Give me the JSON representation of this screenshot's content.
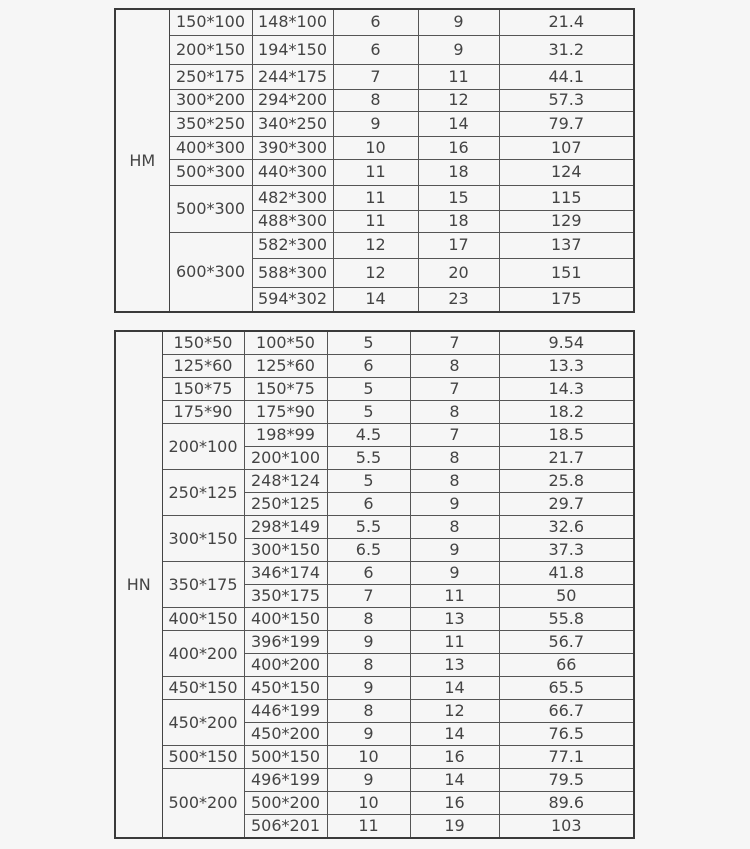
{
  "tables": [
    {
      "series": "HM",
      "groups": [
        {
          "nominal": "150*100",
          "rows": [
            [
              "148*100",
              "6",
              "9",
              "21.4"
            ]
          ]
        },
        {
          "nominal": "200*150",
          "rows": [
            [
              "194*150",
              "6",
              "9",
              "31.2"
            ]
          ]
        },
        {
          "nominal": "250*175",
          "rows": [
            [
              "244*175",
              "7",
              "11",
              "44.1"
            ]
          ]
        },
        {
          "nominal": "300*200",
          "rows": [
            [
              "294*200",
              "8",
              "12",
              "57.3"
            ]
          ]
        },
        {
          "nominal": "350*250",
          "rows": [
            [
              "340*250",
              "9",
              "14",
              "79.7"
            ]
          ]
        },
        {
          "nominal": "400*300",
          "rows": [
            [
              "390*300",
              "10",
              "16",
              "107"
            ]
          ]
        },
        {
          "nominal": "500*300",
          "rows": [
            [
              "440*300",
              "11",
              "18",
              "124"
            ]
          ]
        },
        {
          "nominal": "500*300",
          "rows": [
            [
              "482*300",
              "11",
              "15",
              "115"
            ],
            [
              "488*300",
              "11",
              "18",
              "129"
            ]
          ]
        },
        {
          "nominal": "600*300",
          "rows": [
            [
              "582*300",
              "12",
              "17",
              "137"
            ],
            [
              "588*300",
              "12",
              "20",
              "151"
            ],
            [
              "594*302",
              "14",
              "23",
              "175"
            ]
          ]
        }
      ]
    },
    {
      "series": "HN",
      "groups": [
        {
          "nominal": "150*50",
          "rows": [
            [
              "100*50",
              "5",
              "7",
              "9.54"
            ]
          ]
        },
        {
          "nominal": "125*60",
          "rows": [
            [
              "125*60",
              "6",
              "8",
              "13.3"
            ]
          ]
        },
        {
          "nominal": "150*75",
          "rows": [
            [
              "150*75",
              "5",
              "7",
              "14.3"
            ]
          ]
        },
        {
          "nominal": "175*90",
          "rows": [
            [
              "175*90",
              "5",
              "8",
              "18.2"
            ]
          ]
        },
        {
          "nominal": "200*100",
          "rows": [
            [
              "198*99",
              "4.5",
              "7",
              "18.5"
            ],
            [
              "200*100",
              "5.5",
              "8",
              "21.7"
            ]
          ]
        },
        {
          "nominal": "250*125",
          "rows": [
            [
              "248*124",
              "5",
              "8",
              "25.8"
            ],
            [
              "250*125",
              "6",
              "9",
              "29.7"
            ]
          ]
        },
        {
          "nominal": "300*150",
          "rows": [
            [
              "298*149",
              "5.5",
              "8",
              "32.6"
            ],
            [
              "300*150",
              "6.5",
              "9",
              "37.3"
            ]
          ]
        },
        {
          "nominal": "350*175",
          "rows": [
            [
              "346*174",
              "6",
              "9",
              "41.8"
            ],
            [
              "350*175",
              "7",
              "11",
              "50"
            ]
          ]
        },
        {
          "nominal": "400*150",
          "rows": [
            [
              "400*150",
              "8",
              "13",
              "55.8"
            ]
          ]
        },
        {
          "nominal": "400*200",
          "rows": [
            [
              "396*199",
              "9",
              "11",
              "56.7"
            ],
            [
              "400*200",
              "8",
              "13",
              "66"
            ]
          ]
        },
        {
          "nominal": "450*150",
          "rows": [
            [
              "450*150",
              "9",
              "14",
              "65.5"
            ]
          ]
        },
        {
          "nominal": "450*200",
          "rows": [
            [
              "446*199",
              "8",
              "12",
              "66.7"
            ],
            [
              "450*200",
              "9",
              "14",
              "76.5"
            ]
          ]
        },
        {
          "nominal": "500*150",
          "rows": [
            [
              "500*150",
              "10",
              "16",
              "77.1"
            ]
          ]
        },
        {
          "nominal": "500*200",
          "rows": [
            [
              "496*199",
              "9",
              "14",
              "79.5"
            ],
            [
              "500*200",
              "10",
              "16",
              "89.6"
            ],
            [
              "506*201",
              "11",
              "19",
              "103"
            ]
          ]
        }
      ]
    }
  ]
}
